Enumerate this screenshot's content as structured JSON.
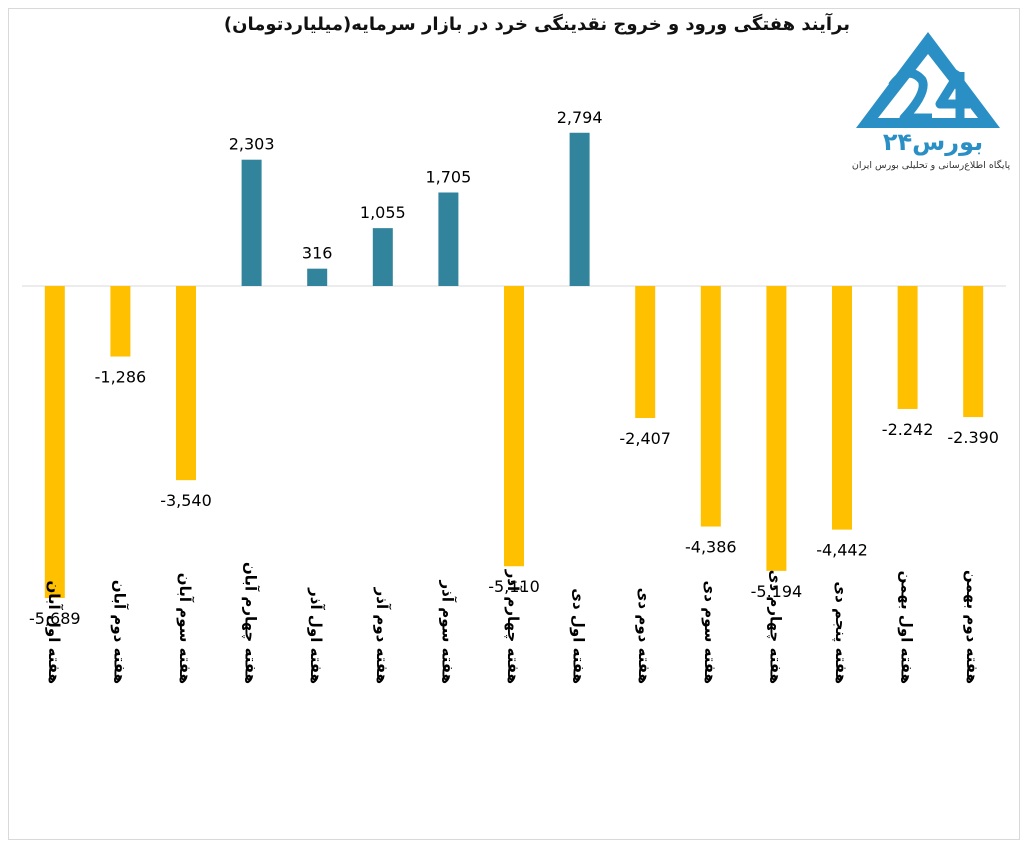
{
  "chart_data": {
    "type": "bar",
    "title": "برآیند هفتگی ورود و خروج نقدینگی خرد در بازار سرمایه(میلیاردتومان)",
    "categories": [
      "هفته اول آبان",
      "هفته دوم آبان",
      "هفته سوم آبان",
      "هفته چهارم آبان",
      "هفته اول آذر",
      "هفته دوم آذر",
      "هفته سوم آذر",
      "هفته چهارم آذر",
      "هفته اول دی",
      "هفته دوم دی",
      "هفته سوم دی",
      "هفته چهارم دی",
      "هفته پنجم دی",
      "هفته اول بهمن",
      "هفته دوم بهمن"
    ],
    "values": [
      -5689,
      -1286,
      -3540,
      2303,
      316,
      1055,
      1705,
      -5110,
      2794,
      -2407,
      -4386,
      -5194,
      -4442,
      -2242,
      -2390
    ],
    "value_labels": [
      "-5,689",
      "-1,286",
      "-3,540",
      "2,303",
      "316",
      "1,055",
      "1,705",
      "-5,110",
      "2,794",
      "-2,407",
      "-4,386",
      "-5.194",
      "-4,442",
      "-2.242",
      "-2.390"
    ],
    "positive_color": "#31849b",
    "negative_color": "#ffc000",
    "ylim": [
      -5689,
      2794
    ],
    "grid": false,
    "legend": "none"
  },
  "logo": {
    "name": "بورس۲۴",
    "tagline": "پایگاه اطلاع‌رسانی و تحلیلی بورس ایران",
    "color": "#2a8fc4"
  }
}
